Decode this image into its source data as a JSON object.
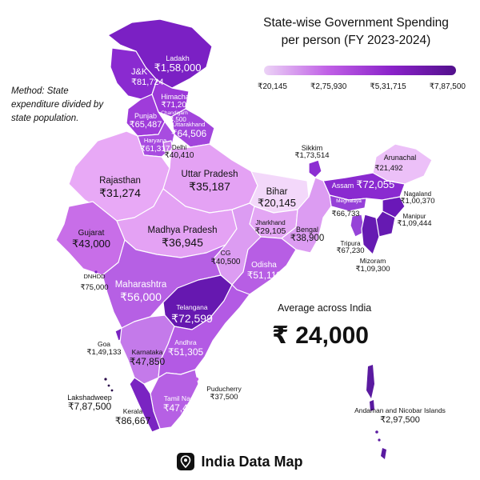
{
  "title_line1": "State-wise Government Spending",
  "title_line2": "per person (FY 2023-2024)",
  "method": "Method: State expenditure divided by state population.",
  "legend": {
    "ticks": [
      "₹20,145",
      "₹2,75,930",
      "₹5,31,715",
      "₹7,87,500"
    ],
    "colors": [
      "#ecd3f6",
      "#c060e6",
      "#8a22c9",
      "#52108c"
    ]
  },
  "average": {
    "label": "Average across India",
    "value": "₹ 24,000"
  },
  "brand": "India Data Map",
  "states": {
    "ladakh": {
      "name": "Ladakh",
      "value": "₹1,58,000"
    },
    "jk": {
      "name": "J&K",
      "value": "₹81,724"
    },
    "himachal": {
      "name": "Himachal",
      "value": "₹71,204"
    },
    "punjab": {
      "name": "Punjab",
      "value": "₹65,487"
    },
    "chandigarh": {
      "name": "Chandigarh",
      "value": "₹54,500"
    },
    "uttarakhand": {
      "name": "Uttarakhand",
      "value": "₹64,506"
    },
    "haryana": {
      "name": "Haryana",
      "value": "₹61,317"
    },
    "delhi": {
      "name": "Delhi",
      "value": "₹40,410"
    },
    "rajasthan": {
      "name": "Rajasthan",
      "value": "₹31,274"
    },
    "uttar_pradesh": {
      "name": "Uttar Pradesh",
      "value": "₹35,187"
    },
    "bihar": {
      "name": "Bihar",
      "value": "₹20,145"
    },
    "sikkim": {
      "name": "Sikkim",
      "value": "₹1,73,514"
    },
    "arunachal": {
      "name": "Arunachal",
      "value": "₹21,492"
    },
    "assam": {
      "name": "Assam",
      "value": "₹72,055"
    },
    "nagaland": {
      "name": "Nagaland",
      "value": "₹1,00,370"
    },
    "meghalaya": {
      "name": "Meghalaya",
      "value": "₹66,733"
    },
    "manipur": {
      "name": "Manipur",
      "value": "₹1,09,444"
    },
    "tripura": {
      "name": "Tripura",
      "value": "₹67,230"
    },
    "mizoram": {
      "name": "Mizoram",
      "value": "₹1,09,300"
    },
    "gujarat": {
      "name": "Gujarat",
      "value": "₹43,000"
    },
    "madhya_pradesh": {
      "name": "Madhya Pradesh",
      "value": "₹36,945"
    },
    "jharkhand": {
      "name": "Jharkhand",
      "value": "₹29,105"
    },
    "bengal": {
      "name": "Bengal",
      "value": "₹38,900"
    },
    "cg": {
      "name": "CG",
      "value": "₹40,500"
    },
    "odisha": {
      "name": "Odisha",
      "value": "₹51,111"
    },
    "dnhdd": {
      "name": "DNHDD",
      "value": "₹75,000"
    },
    "maharashtra": {
      "name": "Maharashtra",
      "value": "₹56,000"
    },
    "telangana": {
      "name": "Telangana",
      "value": "₹72,599"
    },
    "goa": {
      "name": "Goa",
      "value": "₹1,49,133"
    },
    "karnataka": {
      "name": "Karnataka",
      "value": "₹47,850"
    },
    "andhra": {
      "name": "Andhra",
      "value": "₹51,305"
    },
    "puducherry": {
      "name": "Puducherry",
      "value": "₹37,500"
    },
    "tamil_nadu": {
      "name": "Tamil Nadu",
      "value": "₹47,415"
    },
    "kerala": {
      "name": "Kerala",
      "value": "₹86,667"
    },
    "lakshadweep": {
      "name": "Lakshadweep",
      "value": "₹7,87,500"
    },
    "andaman": {
      "name": "Andaman and Nicobar Islands",
      "value": "₹2,97,500"
    }
  }
}
